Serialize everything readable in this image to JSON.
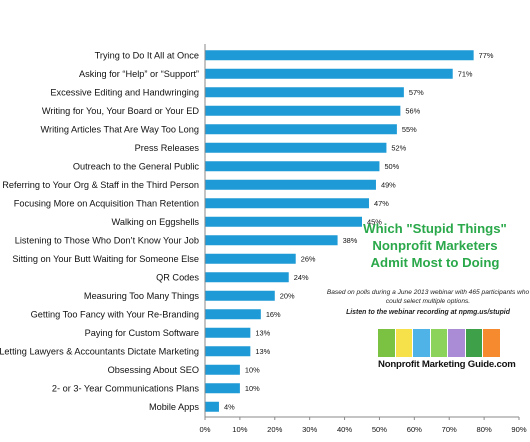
{
  "chart_data": {
    "type": "bar",
    "orientation": "horizontal",
    "categories": [
      "Trying to Do It All at Once",
      "Asking for “Help” or “Support”",
      "Excessive Editing and Handwringing",
      "Writing for You, Your Board or Your ED",
      "Writing Articles That Are Way Too Long",
      "Press Releases",
      "Outreach to the General Public",
      "Referring to Your Org & Staff in the Third Person",
      "Focusing More on Acquisition Than Retention",
      "Walking on Eggshells",
      "Listening to Those Who Don’t Know Your Job",
      "Sitting on Your Butt Waiting for Someone Else",
      "QR Codes",
      "Measuring Too Many Things",
      "Getting Too Fancy with Your Re-Branding",
      "Paying for Custom Software",
      "Letting Lawyers & Accountants Dictate Marketing",
      "Obsessing About SEO",
      "2- or 3- Year Communications Plans",
      "Mobile Apps"
    ],
    "values": [
      77,
      71,
      57,
      56,
      55,
      52,
      50,
      49,
      47,
      45,
      38,
      26,
      24,
      20,
      16,
      13,
      13,
      10,
      10,
      4
    ],
    "value_labels": [
      "77%",
      "71%",
      "57%",
      "56%",
      "55%",
      "52%",
      "50%",
      "49%",
      "47%",
      "45%",
      "38%",
      "26%",
      "24%",
      "20%",
      "16%",
      "13%",
      "13%",
      "10%",
      "10%",
      "4%"
    ],
    "x_ticks": [
      "0%",
      "10%",
      "20%",
      "30%",
      "40%",
      "50%",
      "60%",
      "70%",
      "80%",
      "90%"
    ],
    "xlim": [
      0,
      90
    ],
    "bar_color": "#1e9ad6",
    "grid": false,
    "title_lines": [
      "Which \"Stupid Things\"",
      "Nonprofit Marketers",
      "Admit Most to Doing"
    ],
    "title_color": "#2aa84a",
    "note": "Based on polls during a June 2013 webinar with 465 participants who could select multiple options.",
    "listen_text": "Listen to the webinar recording  at npmg.us/stupid"
  },
  "logo": {
    "text": "Nonprofit Marketing Guide.com",
    "colors": [
      "#7cc242",
      "#f7e14a",
      "#4fb3e8",
      "#8bd35a",
      "#a98bd6",
      "#3fa04a",
      "#f58a2f"
    ]
  }
}
